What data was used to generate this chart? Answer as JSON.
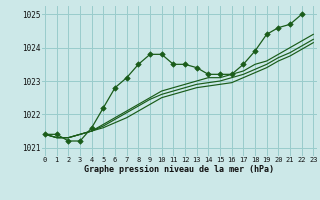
{
  "title": "Graphe pression niveau de la mer (hPa)",
  "bg_color": "#cce8e8",
  "grid_color": "#99cccc",
  "line_color": "#1a5c1a",
  "marker_color": "#1a5c1a",
  "yticks": [
    1021,
    1022,
    1023,
    1024,
    1025
  ],
  "xticks": [
    0,
    1,
    2,
    3,
    4,
    5,
    6,
    7,
    8,
    9,
    10,
    11,
    12,
    13,
    14,
    15,
    16,
    17,
    18,
    19,
    20,
    21,
    22,
    23
  ],
  "series_main": [
    1021.4,
    1021.4,
    1021.2,
    1021.2,
    1021.6,
    1022.2,
    1022.8,
    1023.1,
    1023.5,
    1023.8,
    1023.8,
    1023.5,
    1023.5,
    1023.4,
    1023.2,
    1023.2,
    1023.2,
    1023.5,
    1023.9,
    1024.4,
    1024.6,
    1024.7,
    1025.0
  ],
  "series_line2": [
    1021.4,
    1021.3,
    1021.3,
    1021.4,
    1021.5,
    1021.7,
    1021.9,
    1022.1,
    1022.3,
    1022.5,
    1022.7,
    1022.8,
    1022.9,
    1023.0,
    1023.1,
    1023.1,
    1023.2,
    1023.3,
    1023.5,
    1023.6,
    1023.8,
    1024.0,
    1024.2,
    1024.4
  ],
  "series_line3": [
    1021.4,
    1021.3,
    1021.3,
    1021.4,
    1021.5,
    1021.65,
    1021.85,
    1022.05,
    1022.25,
    1022.45,
    1022.6,
    1022.7,
    1022.8,
    1022.9,
    1022.95,
    1023.0,
    1023.1,
    1023.2,
    1023.35,
    1023.5,
    1023.7,
    1023.85,
    1024.05,
    1024.25
  ],
  "series_line4": [
    1021.4,
    1021.3,
    1021.3,
    1021.4,
    1021.5,
    1021.6,
    1021.75,
    1021.9,
    1022.1,
    1022.3,
    1022.5,
    1022.6,
    1022.7,
    1022.8,
    1022.85,
    1022.9,
    1022.95,
    1023.1,
    1023.25,
    1023.4,
    1023.6,
    1023.75,
    1023.95,
    1024.15
  ],
  "ylim_bottom": 1020.75,
  "ylim_top": 1025.25
}
